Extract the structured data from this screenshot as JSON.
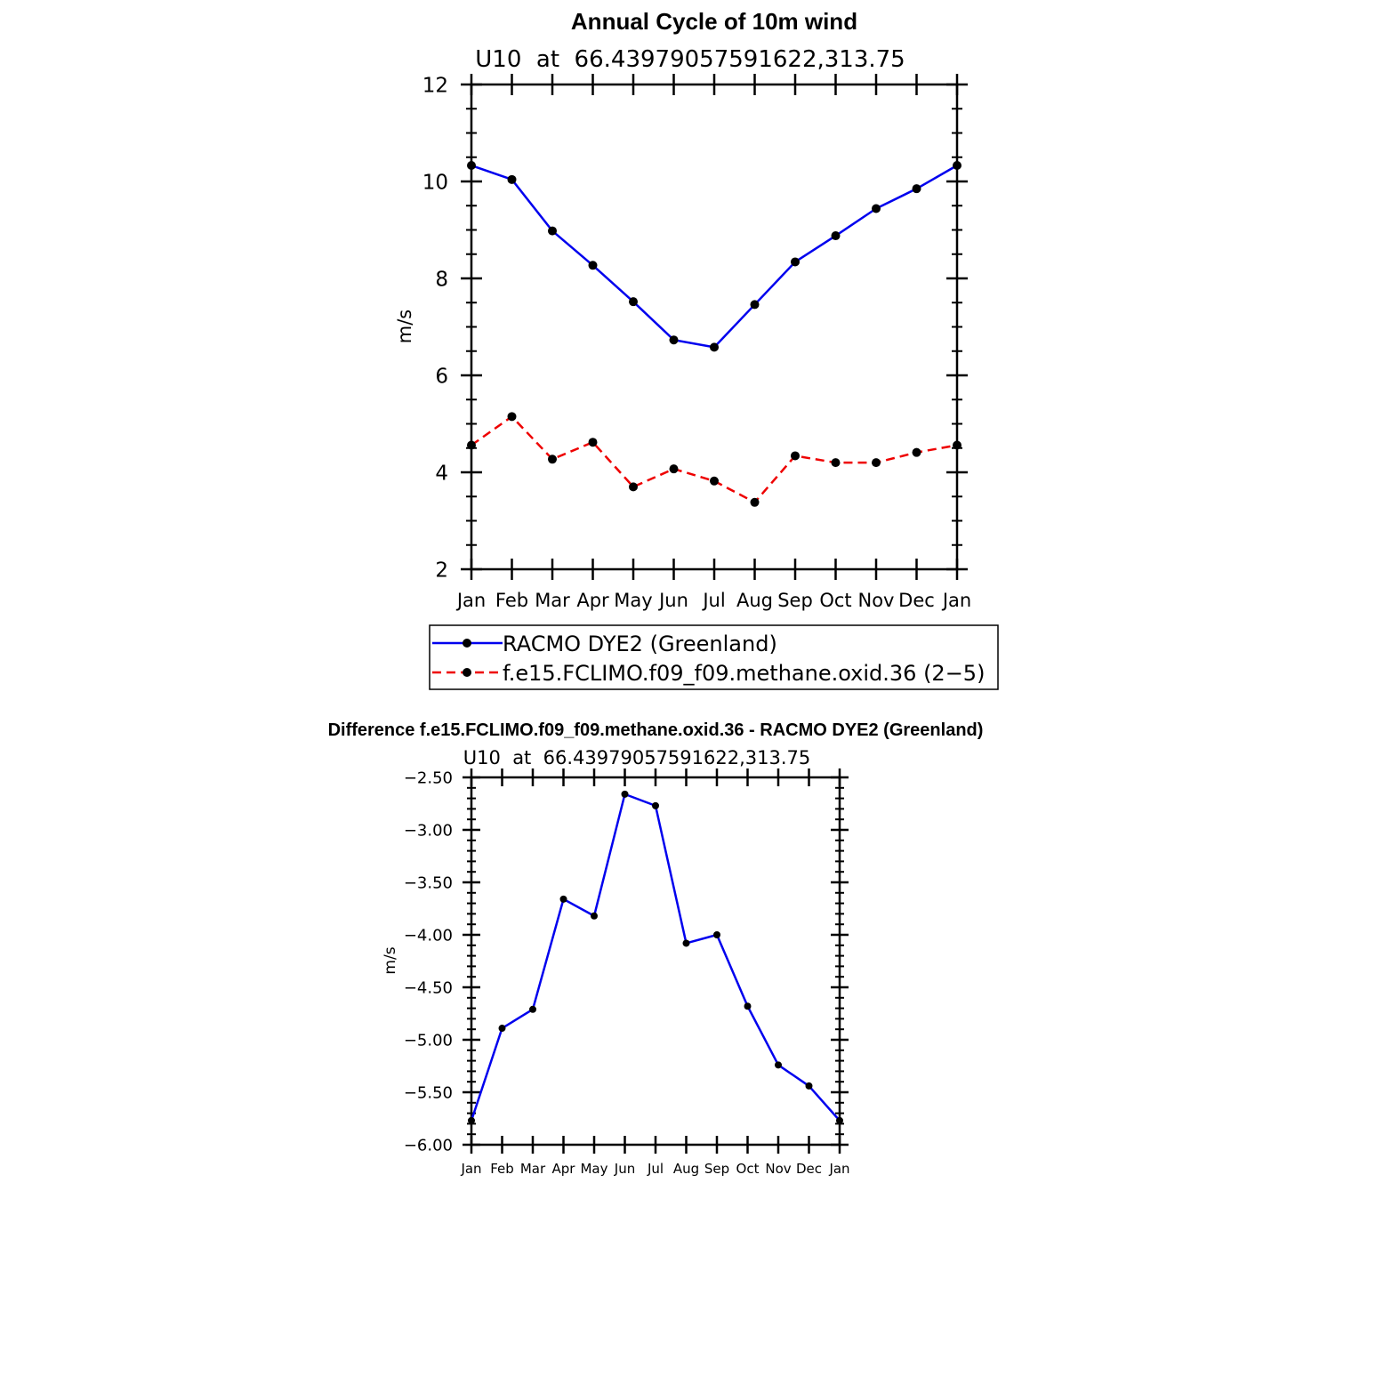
{
  "chart_data": [
    {
      "type": "line",
      "title": "Annual Cycle of 10m wind",
      "subtitle": "U10  at  66.43979057591622,313.75",
      "xlabel": "",
      "ylabel": "m/s",
      "categories": [
        "Jan",
        "Feb",
        "Mar",
        "Apr",
        "May",
        "Jun",
        "Jul",
        "Aug",
        "Sep",
        "Oct",
        "Nov",
        "Dec",
        "Jan"
      ],
      "ylim": [
        2,
        12
      ],
      "yticks": [
        "2",
        "4",
        "6",
        "8",
        "10",
        "12"
      ],
      "grid": false,
      "legend_position": "below",
      "series": [
        {
          "name": "RACMO DYE2 (Greenland)",
          "color": "#0000ee",
          "dash": "solid",
          "values": [
            10.33,
            10.04,
            8.98,
            8.27,
            7.52,
            6.73,
            6.58,
            7.46,
            8.34,
            8.88,
            9.44,
            9.85,
            10.33
          ]
        },
        {
          "name": "f.e15.FCLIMO.f09_f09.methane.oxid.36 (2−5)",
          "color": "#ee0000",
          "dash": "dashed",
          "values": [
            4.56,
            5.15,
            4.27,
            4.62,
            3.7,
            4.07,
            3.82,
            3.38,
            4.34,
            4.2,
            4.2,
            4.41,
            4.56
          ]
        }
      ]
    },
    {
      "type": "line",
      "title": "Difference f.e15.FCLIMO.f09_f09.methane.oxid.36 - RACMO DYE2 (Greenland)",
      "subtitle": "U10  at  66.43979057591622,313.75",
      "xlabel": "",
      "ylabel": "m/s",
      "categories": [
        "Jan",
        "Feb",
        "Mar",
        "Apr",
        "May",
        "Jun",
        "Jul",
        "Aug",
        "Sep",
        "Oct",
        "Nov",
        "Dec",
        "Jan"
      ],
      "ylim": [
        -6.0,
        -2.5
      ],
      "yticks": [
        "−6.00",
        "−5.50",
        "−5.00",
        "−4.50",
        "−4.00",
        "−3.50",
        "−3.00",
        "−2.50"
      ],
      "grid": false,
      "series": [
        {
          "color": "#0000ee",
          "dash": "solid",
          "values": [
            -5.77,
            -4.89,
            -4.71,
            -3.66,
            -3.82,
            -2.66,
            -2.77,
            -4.08,
            -4.0,
            -4.68,
            -5.24,
            -5.44,
            -5.77
          ]
        }
      ]
    }
  ]
}
